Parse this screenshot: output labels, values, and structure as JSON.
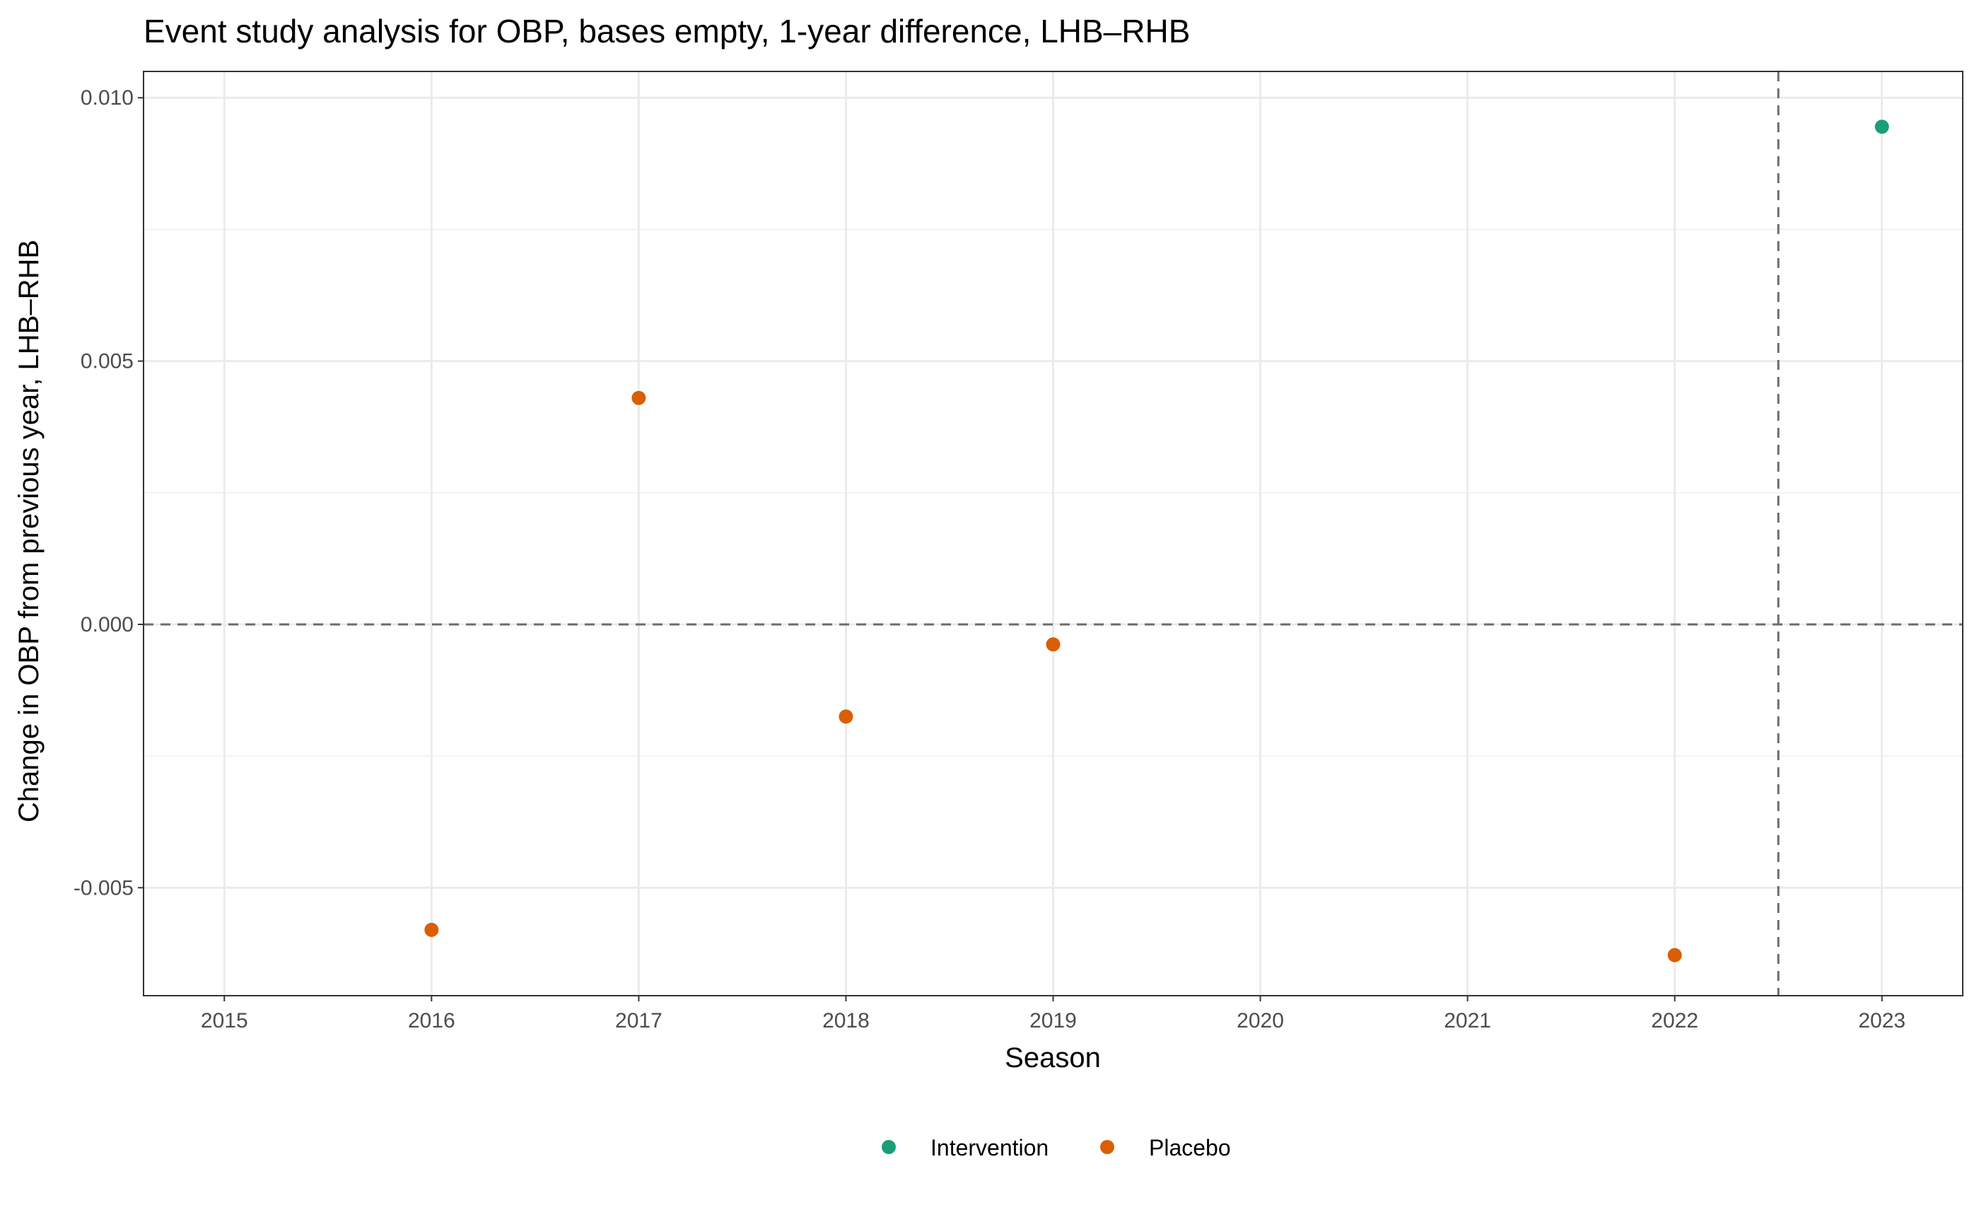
{
  "chart_data": {
    "type": "scatter",
    "title": "Event study analysis for OBP, bases empty, 1-year difference, LHB–RHB",
    "xlabel": "Season",
    "ylabel": "Change in OBP from previous year, LHB–RHB",
    "x_ticks": [
      2015,
      2016,
      2017,
      2018,
      2019,
      2020,
      2021,
      2022,
      2023
    ],
    "x_tick_labels": [
      "2015",
      "2016",
      "2017",
      "2018",
      "2019",
      "2020",
      "2021",
      "2022",
      "2023"
    ],
    "y_ticks": [
      -0.005,
      0.0,
      0.005,
      0.01
    ],
    "y_tick_labels": [
      "-0.005",
      "0.000",
      "0.005",
      "0.010"
    ],
    "xlim": [
      2014.61,
      2023.39
    ],
    "ylim": [
      -0.00705,
      0.0105
    ],
    "grid": true,
    "legend_position": "bottom",
    "reference_lines": {
      "hline_y": 0.0,
      "vline_x": 2022.5
    },
    "series": [
      {
        "name": "Intervention",
        "color": "#1b9e77",
        "points": [
          {
            "x": 2023,
            "y": 0.00945
          }
        ]
      },
      {
        "name": "Placebo",
        "color": "#d95f02",
        "points": [
          {
            "x": 2016,
            "y": -0.0058
          },
          {
            "x": 2017,
            "y": 0.0043
          },
          {
            "x": 2018,
            "y": -0.00175
          },
          {
            "x": 2019,
            "y": -0.00038
          },
          {
            "x": 2022,
            "y": -0.00628
          }
        ]
      }
    ]
  }
}
